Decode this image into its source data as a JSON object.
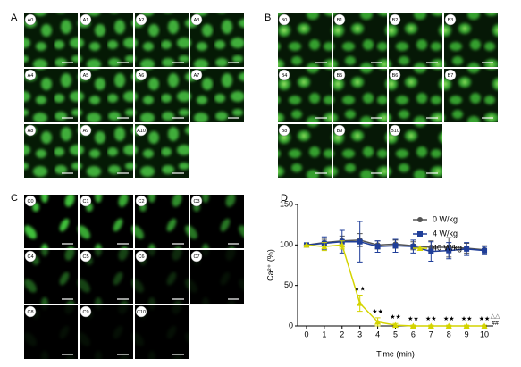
{
  "panels": [
    {
      "label": "A",
      "images": [
        "A0",
        "A1",
        "A2",
        "A3",
        "A4",
        "A5",
        "A6",
        "A7",
        "A8",
        "A9",
        "A10"
      ]
    },
    {
      "label": "B",
      "images": [
        "B0",
        "B1",
        "B2",
        "B3",
        "B4",
        "B5",
        "B6",
        "B7",
        "B8",
        "B9",
        "B10"
      ]
    },
    {
      "label": "C",
      "images": [
        "C0",
        "C1",
        "C2",
        "C3",
        "C4",
        "C5",
        "C6",
        "C7",
        "C8",
        "C9",
        "C10"
      ]
    }
  ],
  "chart_label": "D",
  "chart_data": {
    "type": "line",
    "x": [
      0,
      1,
      2,
      3,
      4,
      5,
      6,
      7,
      8,
      9,
      10
    ],
    "series": [
      {
        "name": "0 W/kg",
        "color": "#555555",
        "marker": "circle",
        "values": [
          100,
          103,
          105,
          106,
          100,
          101,
          99,
          97,
          97,
          96,
          94
        ],
        "errors": [
          0,
          4,
          6,
          8,
          5,
          5,
          5,
          8,
          12,
          6,
          5
        ]
      },
      {
        "name": "4 W/kg",
        "color": "#1f3e99",
        "marker": "square",
        "values": [
          100,
          102,
          104,
          104,
          98,
          99,
          98,
          92,
          93,
          95,
          93
        ],
        "errors": [
          0,
          8,
          14,
          25,
          7,
          8,
          8,
          12,
          10,
          8,
          5
        ]
      },
      {
        "name": "40 W/kg",
        "color": "#d4d400",
        "marker": "triangle",
        "values": [
          100,
          98,
          100,
          28,
          5,
          1,
          0,
          0,
          0,
          0,
          0
        ],
        "errors": [
          0,
          5,
          5,
          10,
          5,
          2,
          1,
          1,
          1,
          1,
          1
        ]
      }
    ],
    "annotations": [
      {
        "text": "★★",
        "x": 3
      },
      {
        "text": "★★",
        "x": 4
      },
      {
        "text": "★★",
        "x": 5
      },
      {
        "text": "★★",
        "x": 6
      },
      {
        "text": "★★",
        "x": 7
      },
      {
        "text": "★★",
        "x": 8
      },
      {
        "text": "★★",
        "x": 9
      },
      {
        "text": "★★",
        "x": 10
      }
    ],
    "end_marks": {
      "triangles": "△△",
      "hashes": "##"
    },
    "xlabel": "Time (min)",
    "ylabel": "Ca²⁺ (%)",
    "xlim": [
      -0.5,
      10.5
    ],
    "ylim": [
      0,
      150
    ],
    "xticks": [
      0,
      1,
      2,
      3,
      4,
      5,
      6,
      7,
      8,
      9,
      10
    ],
    "yticks": [
      0,
      50,
      100,
      150
    ],
    "legend": "upper right"
  }
}
